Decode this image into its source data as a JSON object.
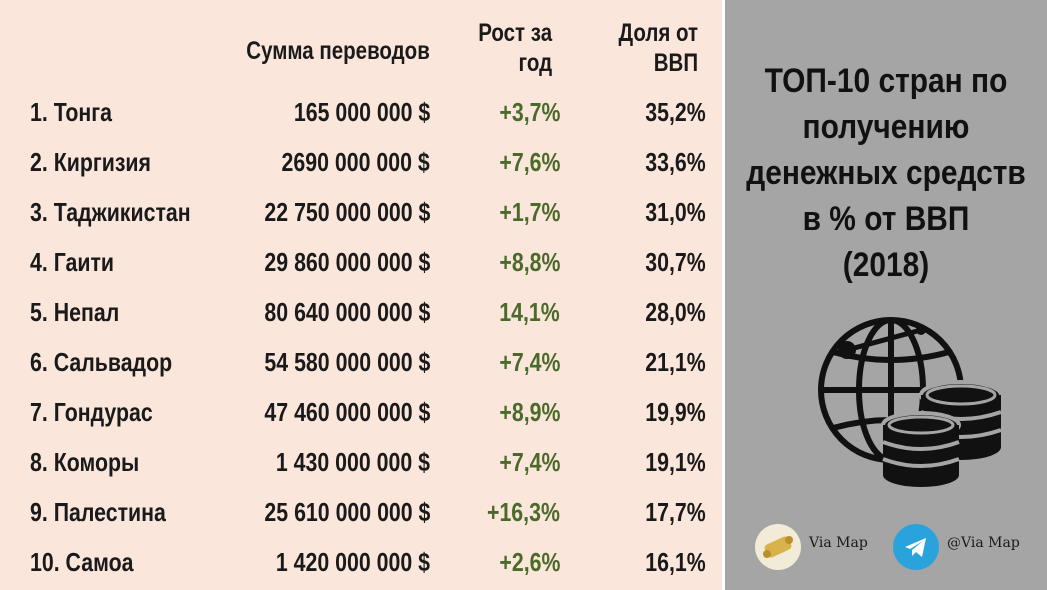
{
  "headers": {
    "sum": "Сумма переводов",
    "growth_line1": "Рост за",
    "growth_line2": "год",
    "share_line1": "Доля от",
    "share_line2": "ВВП"
  },
  "rows": [
    {
      "name": "1. Тонга",
      "sum": "165 000 000 $",
      "growth": "+3,7%",
      "share": "35,2%"
    },
    {
      "name": "2. Киргизия",
      "sum": "2690 000 000 $",
      "growth": "+7,6%",
      "share": "33,6%"
    },
    {
      "name": "3. Таджикистан",
      "sum": "22 750 000 000 $",
      "growth": "+1,7%",
      "share": "31,0%"
    },
    {
      "name": "4. Гаити",
      "sum": "29 860 000 000 $",
      "growth": "+8,8%",
      "share": "30,7%"
    },
    {
      "name": "5. Непал",
      "sum": "80 640 000 000 $",
      "growth": "14,1%",
      "share": "28,0%"
    },
    {
      "name": "6. Сальвадор",
      "sum": "54 580 000 000 $",
      "growth": "+7,4%",
      "share": "21,1%"
    },
    {
      "name": "7. Гондурас",
      "sum": "47 460 000 000 $",
      "growth": "+8,9%",
      "share": "19,9%"
    },
    {
      "name": "8. Коморы",
      "sum": "1 430 000 000 $",
      "growth": "+7,4%",
      "share": "19,1%"
    },
    {
      "name": "9. Палестина",
      "sum": "25 610 000 000 $",
      "growth": "+16,3%",
      "share": "17,7%"
    },
    {
      "name": "10. Самоа",
      "sum": "1 420 000 000 $",
      "growth": "+2,6%",
      "share": "16,1%"
    }
  ],
  "panel": {
    "title_lines": [
      "ТОП-10 стран по",
      "получению",
      "денежных средств",
      "в % от ВВП",
      "(2018)"
    ],
    "icon": "globe-with-coins-icon"
  },
  "footer": {
    "left_label": "Via Map",
    "left_icon": "scroll-map-icon",
    "right_label": "@Via Map",
    "right_icon": "telegram-icon"
  },
  "colors": {
    "left_bg": "#fbe6dc",
    "right_bg": "#a5a5a5",
    "growth_text": "#4a6a2a",
    "telegram": "#2aa3dd"
  }
}
